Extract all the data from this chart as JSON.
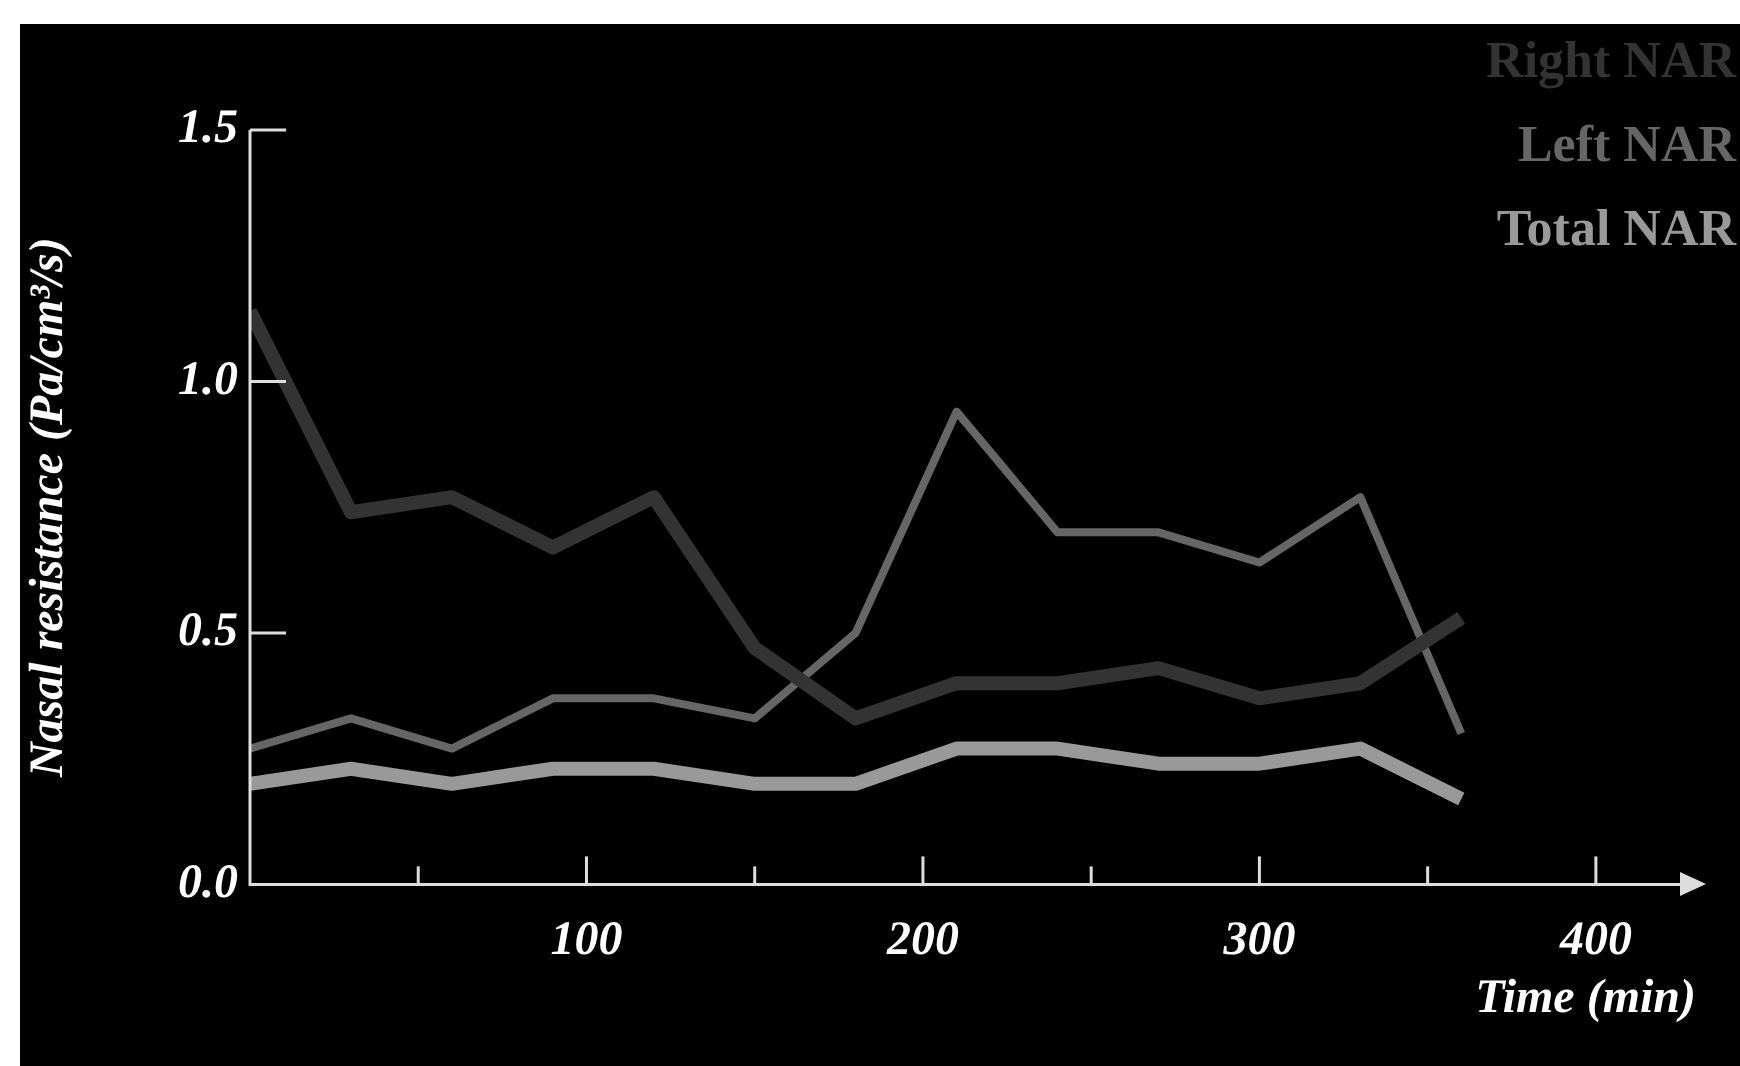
{
  "chart_data": {
    "type": "line",
    "xlabel": "Time (min)",
    "ylabel": "Nasal resistance (Pa/cm³/s)",
    "x": [
      0,
      30,
      60,
      90,
      120,
      150,
      180,
      210,
      240,
      270,
      300,
      330,
      360
    ],
    "series": [
      {
        "name": "Right NAR",
        "color": "#333333",
        "values": [
          1.14,
          0.74,
          0.77,
          0.67,
          0.77,
          0.47,
          0.33,
          0.4,
          0.4,
          0.43,
          0.37,
          0.4,
          0.53
        ]
      },
      {
        "name": "Left NAR",
        "color": "#666666",
        "values": [
          0.27,
          0.33,
          0.27,
          0.37,
          0.37,
          0.33,
          0.5,
          0.94,
          0.7,
          0.7,
          0.64,
          0.77,
          0.3
        ]
      },
      {
        "name": "Total NAR",
        "color": "#999999",
        "values": [
          0.2,
          0.23,
          0.2,
          0.23,
          0.23,
          0.2,
          0.2,
          0.27,
          0.27,
          0.24,
          0.24,
          0.27,
          0.17
        ]
      }
    ],
    "xlim": [
      0,
      425
    ],
    "xticks": [
      {
        "value": 50,
        "label": null
      },
      100,
      {
        "value": 150,
        "label": null
      },
      200,
      {
        "value": 250,
        "label": null
      },
      300,
      {
        "value": 350,
        "label": null
      },
      400
    ],
    "ylim": [
      0,
      1.5
    ],
    "yticks": [
      {
        "value": 0,
        "label": "0.0"
      },
      {
        "value": 0.5,
        "label": "0.5"
      },
      {
        "value": 1,
        "label": "1.0"
      },
      {
        "value": 1.5,
        "label": "1.5"
      }
    ],
    "grid": false,
    "legend": "top right",
    "marker": "none",
    "line_style": "solid"
  }
}
